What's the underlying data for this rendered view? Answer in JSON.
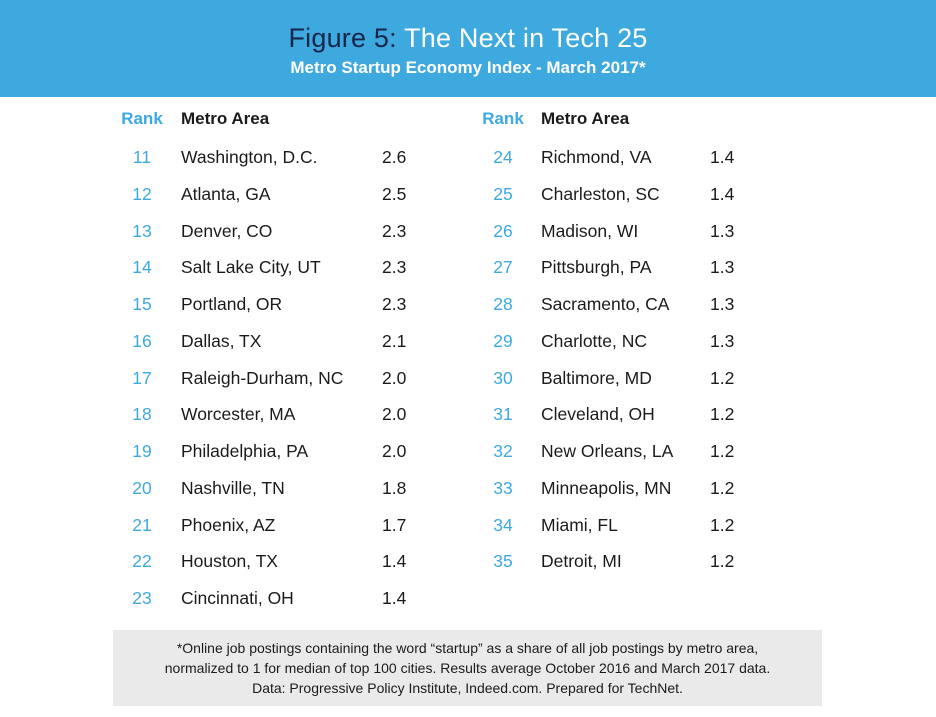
{
  "header": {
    "title_prefix": "Figure 5:",
    "title_main": "The Next in Tech 25",
    "subtitle": "Metro Startup Economy Index - March 2017*"
  },
  "columns": {
    "rank_label": "Rank",
    "metro_label": "Metro Area"
  },
  "chart_data": {
    "type": "table",
    "title": "Figure 5: The Next in Tech 25",
    "subtitle": "Metro Startup Economy Index - March 2017*",
    "headers": [
      "Rank",
      "Metro Area",
      ""
    ],
    "rows": [
      {
        "rank": "11",
        "metro": "Washington, D.C.",
        "value": "2.6"
      },
      {
        "rank": "12",
        "metro": "Atlanta, GA",
        "value": "2.5"
      },
      {
        "rank": "13",
        "metro": "Denver, CO",
        "value": "2.3"
      },
      {
        "rank": "14",
        "metro": "Salt Lake City, UT",
        "value": "2.3"
      },
      {
        "rank": "15",
        "metro": "Portland, OR",
        "value": "2.3"
      },
      {
        "rank": "16",
        "metro": "Dallas, TX",
        "value": "2.1"
      },
      {
        "rank": "17",
        "metro": "Raleigh-Durham, NC",
        "value": "2.0"
      },
      {
        "rank": "18",
        "metro": "Worcester, MA",
        "value": "2.0"
      },
      {
        "rank": "19",
        "metro": "Philadelphia, PA",
        "value": "2.0"
      },
      {
        "rank": "20",
        "metro": "Nashville, TN",
        "value": "1.8"
      },
      {
        "rank": "21",
        "metro": "Phoenix, AZ",
        "value": "1.7"
      },
      {
        "rank": "22",
        "metro": "Houston, TX",
        "value": "1.4"
      },
      {
        "rank": "23",
        "metro": "Cincinnati, OH",
        "value": "1.4"
      },
      {
        "rank": "24",
        "metro": "Richmond, VA",
        "value": "1.4"
      },
      {
        "rank": "25",
        "metro": "Charleston, SC",
        "value": "1.4"
      },
      {
        "rank": "26",
        "metro": "Madison, WI",
        "value": "1.3"
      },
      {
        "rank": "27",
        "metro": "Pittsburgh, PA",
        "value": "1.3"
      },
      {
        "rank": "28",
        "metro": "Sacramento, CA",
        "value": "1.3"
      },
      {
        "rank": "29",
        "metro": "Charlotte, NC",
        "value": "1.3"
      },
      {
        "rank": "30",
        "metro": "Baltimore, MD",
        "value": "1.2"
      },
      {
        "rank": "31",
        "metro": "Cleveland, OH",
        "value": "1.2"
      },
      {
        "rank": "32",
        "metro": "New Orleans, LA",
        "value": "1.2"
      },
      {
        "rank": "33",
        "metro": "Minneapolis, MN",
        "value": "1.2"
      },
      {
        "rank": "34",
        "metro": "Miami, FL",
        "value": "1.2"
      },
      {
        "rank": "35",
        "metro": "Detroit, MI",
        "value": "1.2"
      }
    ]
  },
  "footnote": {
    "line1": "*Online job postings containing the word “startup” as a share of all job postings by metro area,",
    "line2": "normalized to 1 for median of top 100 cities.  Results average October 2016 and March 2017 data.",
    "line3": "Data: Progressive Policy Institute, Indeed.com.  Prepared for TechNet."
  },
  "colors": {
    "accent": "#3ea9df",
    "title_dark": "#16254a",
    "text": "#1b1b1b",
    "footnote_bg": "#eaeaea"
  }
}
